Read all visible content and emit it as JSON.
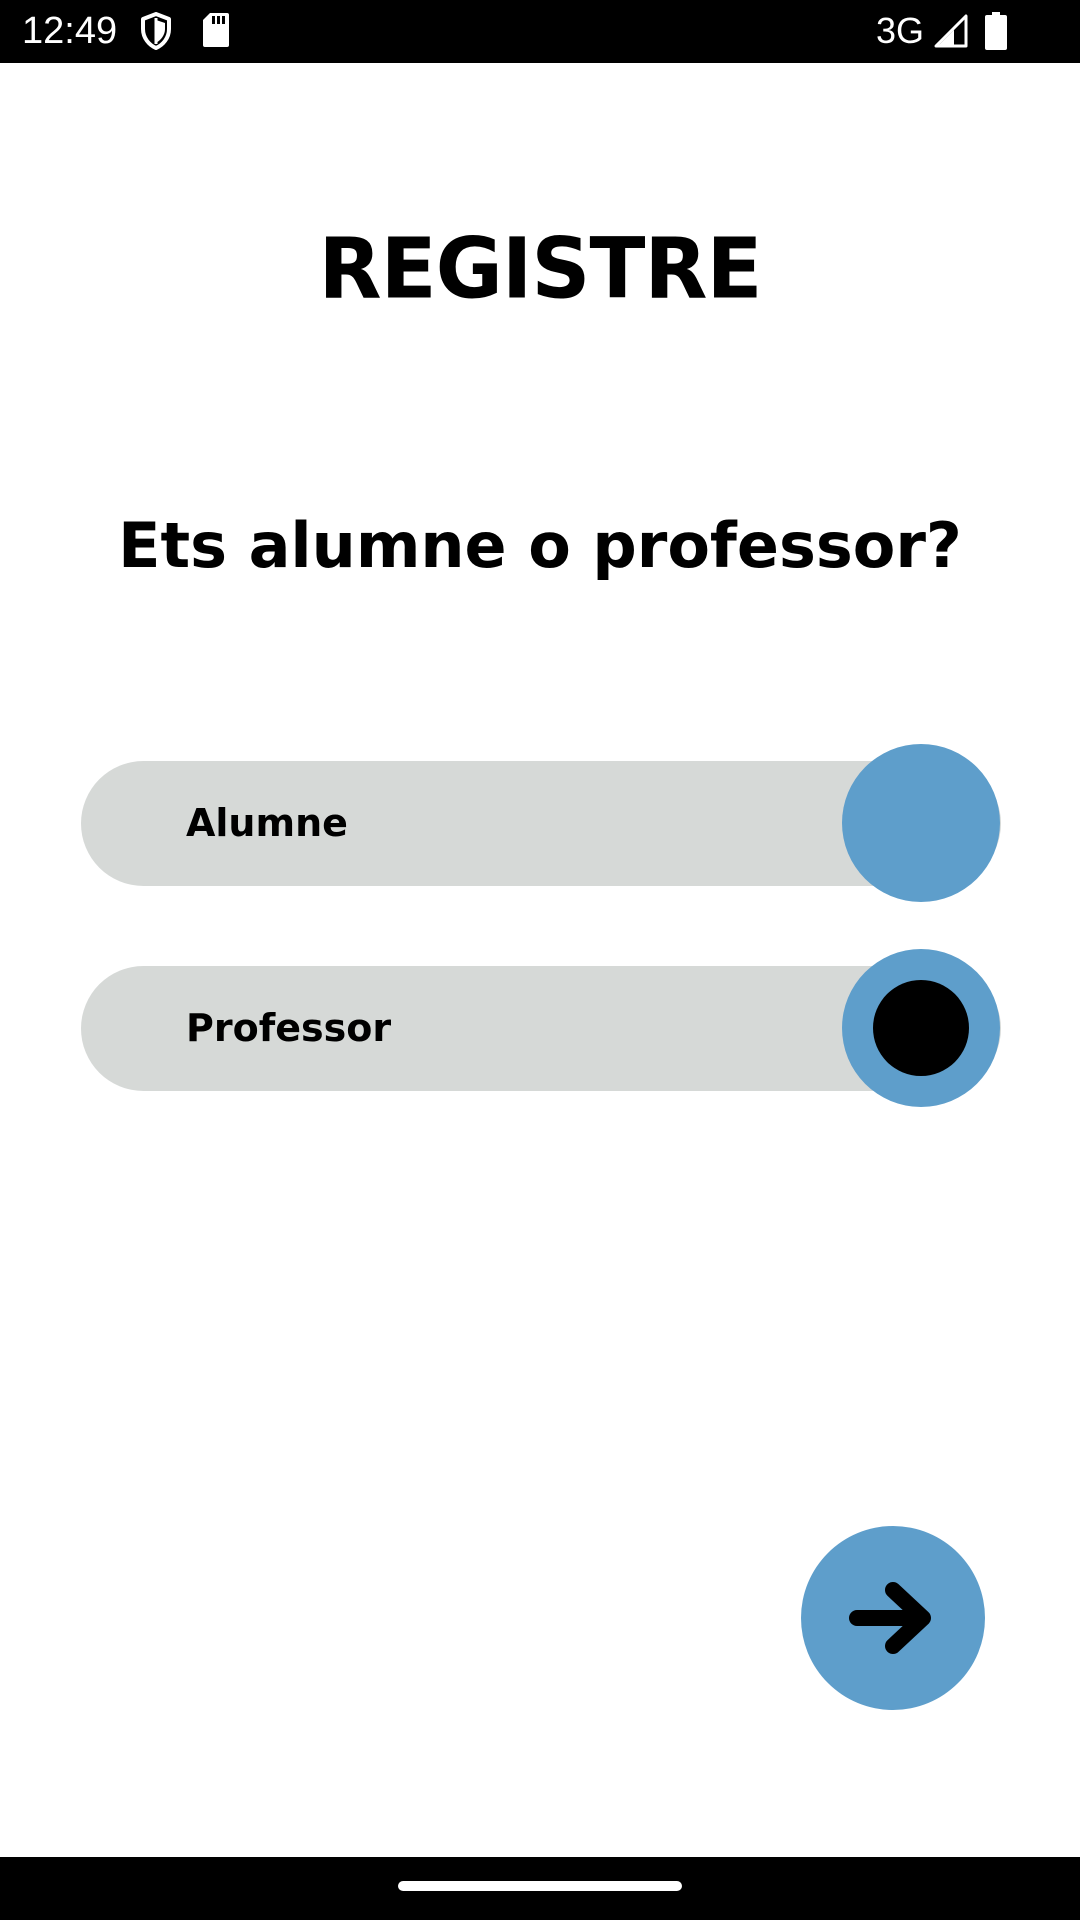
{
  "status_bar": {
    "time": "12:49",
    "network": "3G",
    "icons": [
      "shield-icon",
      "sd-card-icon",
      "signal-icon",
      "battery-icon"
    ]
  },
  "title": "REGISTRE",
  "question": "Ets alumne o professor?",
  "options": [
    {
      "label": "Alumne",
      "selected": false
    },
    {
      "label": "Professor",
      "selected": true
    }
  ],
  "next_button": {
    "icon": "arrow-right-icon"
  },
  "colors": {
    "accent": "#5e9ecb",
    "option_background": "#d6d9d7",
    "text": "#000000"
  }
}
